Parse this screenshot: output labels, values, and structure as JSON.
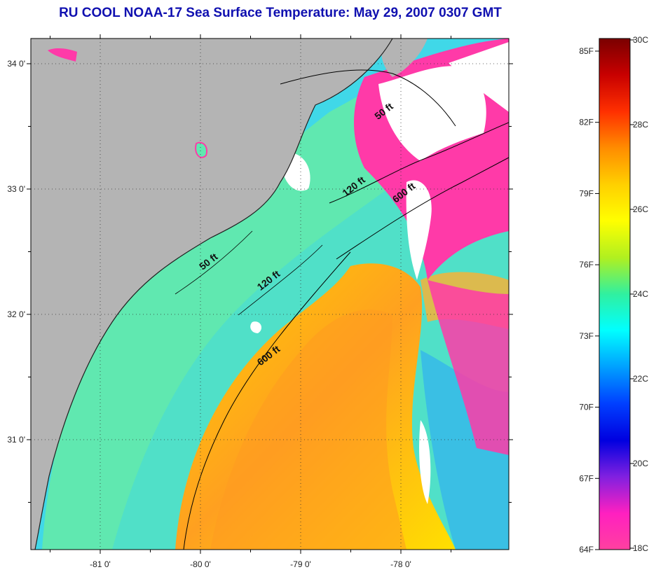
{
  "title": "RU COOL  NOAA-17  Sea Surface Temperature:  May 29, 2007 0307 GMT",
  "lat_ticks": [
    {
      "label": "34 0'",
      "lat": 34
    },
    {
      "label": "33 0'",
      "lat": 33
    },
    {
      "label": "32 0'",
      "lat": 32
    },
    {
      "label": "31 0'",
      "lat": 31
    }
  ],
  "lon_ticks": [
    {
      "label": "-81 0'",
      "lon": -81
    },
    {
      "label": "-80 0'",
      "lon": -80
    },
    {
      "label": "-79 0'",
      "lon": -79
    },
    {
      "label": "-78 0'",
      "lon": -78
    }
  ],
  "isobath_labels": [
    {
      "text": "50 ft",
      "lon": -78.15,
      "lat": 33.6
    },
    {
      "text": "120 ft",
      "lon": -78.45,
      "lat": 33.0
    },
    {
      "text": "600 ft",
      "lon": -77.95,
      "lat": 32.95
    },
    {
      "text": "50 ft",
      "lon": -79.9,
      "lat": 32.4
    },
    {
      "text": "120 ft",
      "lon": -79.3,
      "lat": 32.25
    },
    {
      "text": "600 ft",
      "lon": -79.3,
      "lat": 31.65
    }
  ],
  "colorbar": {
    "fahrenheit": [
      "85F",
      "82F",
      "79F",
      "76F",
      "73F",
      "70F",
      "67F",
      "64F"
    ],
    "celsius": [
      "30C",
      "28C",
      "26C",
      "24C",
      "22C",
      "20C",
      "18C"
    ],
    "colors": [
      "#7a0000",
      "#c80000",
      "#ff3000",
      "#ff8c00",
      "#ffd000",
      "#ffff00",
      "#b0f020",
      "#30f0a0",
      "#00ffff",
      "#00a0ff",
      "#0040ff",
      "#0000e0",
      "#8020e0",
      "#ff20c0",
      "#ff40a0"
    ]
  },
  "colors": {
    "land": "#b4b4b4",
    "cloud": "#ffffff",
    "title": "#1010b0"
  }
}
